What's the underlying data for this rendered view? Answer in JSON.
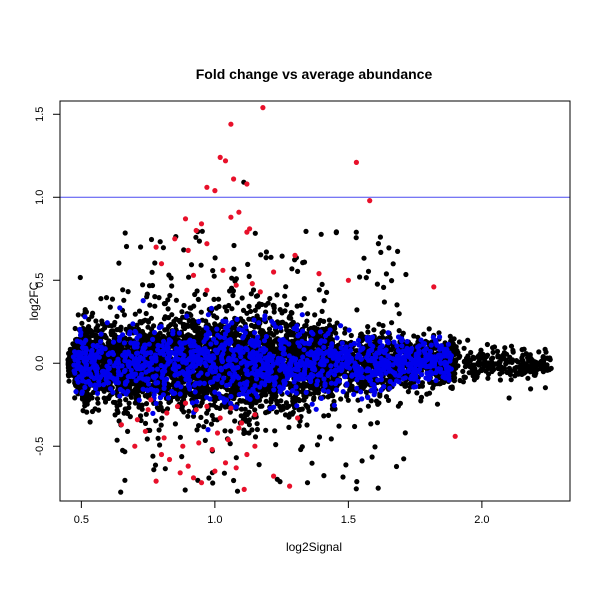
{
  "chart_data": {
    "type": "scatter",
    "title": "Fold change vs average abundance",
    "xlabel": "log2Signal",
    "ylabel": "log2FC",
    "xlim": [
      0.42,
      2.33
    ],
    "ylim": [
      -0.83,
      1.58
    ],
    "x_ticks": [
      0.5,
      1.0,
      1.5,
      2.0
    ],
    "x_tick_labels": [
      "0.5",
      "1.0",
      "1.5",
      "2.0"
    ],
    "y_ticks": [
      -0.5,
      0.0,
      0.5,
      1.0,
      1.5
    ],
    "y_tick_labels": [
      "-0.5",
      "0.0",
      "0.5",
      "1.0",
      "1.5"
    ],
    "grid": false,
    "reference_line": {
      "y": 1.0,
      "color": "#4a4af0"
    },
    "colors": {
      "all_points": "#000000",
      "blue_points": "#0000ee",
      "red_points": "#e8102a"
    },
    "series": [
      {
        "color": "red",
        "x": [
          1.18,
          1.06,
          1.02,
          1.04,
          1.53,
          1.58,
          1.07,
          1.12,
          0.97,
          1.0,
          0.89,
          1.06,
          1.13,
          1.12,
          0.95,
          0.93,
          1.09,
          0.97,
          0.9,
          0.85,
          0.78,
          0.8,
          1.3,
          1.03,
          0.92,
          1.22,
          1.39,
          1.5,
          1.82,
          0.97,
          1.08,
          1.17,
          1.14,
          0.75,
          0.71,
          0.76,
          0.82,
          0.86,
          0.89,
          0.93,
          0.97,
          1.02,
          1.06,
          1.1,
          1.15,
          0.81,
          0.88,
          0.94,
          0.99,
          1.05,
          1.12,
          1.31,
          0.65,
          0.7,
          0.74,
          0.8,
          0.83,
          0.9,
          1.0,
          1.04,
          1.08,
          1.22,
          0.95,
          1.01,
          1.09,
          1.15,
          1.28,
          1.9,
          0.87,
          0.92,
          0.78,
          1.11
        ],
        "y": [
          1.54,
          1.44,
          1.24,
          1.22,
          1.21,
          0.98,
          1.11,
          1.08,
          1.06,
          1.04,
          0.87,
          0.88,
          0.81,
          0.79,
          0.84,
          0.8,
          0.91,
          0.72,
          0.68,
          0.75,
          0.7,
          0.6,
          0.65,
          0.56,
          0.53,
          0.55,
          0.54,
          0.5,
          0.46,
          0.44,
          0.47,
          0.43,
          0.48,
          -0.28,
          -0.34,
          -0.22,
          -0.3,
          -0.26,
          -0.24,
          -0.28,
          -0.26,
          -0.33,
          -0.27,
          -0.36,
          -0.31,
          -0.45,
          -0.5,
          -0.48,
          -0.52,
          -0.46,
          -0.55,
          -0.33,
          -0.37,
          -0.5,
          -0.41,
          -0.55,
          -0.58,
          -0.62,
          -0.65,
          -0.6,
          -0.63,
          -0.68,
          -0.72,
          -0.42,
          -0.39,
          -0.5,
          -0.74,
          -0.44,
          -0.66,
          -0.69,
          -0.71,
          -0.76
        ]
      }
    ]
  }
}
